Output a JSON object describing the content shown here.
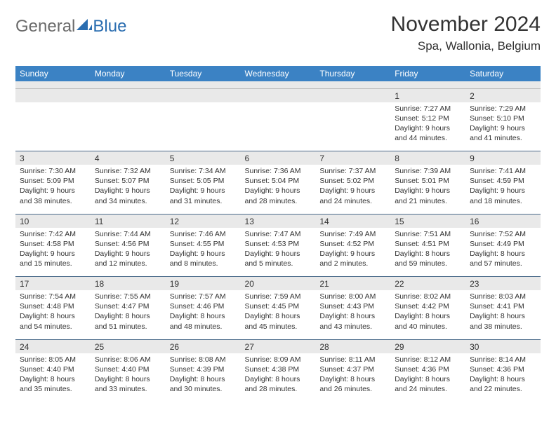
{
  "brand": {
    "part1": "General",
    "part2": "Blue"
  },
  "title": "November 2024",
  "location": "Spa, Wallonia, Belgium",
  "colors": {
    "header_bg": "#3b82c4",
    "header_text": "#ffffff",
    "daynum_bg": "#e9e9e9",
    "text": "#333333",
    "logo_gray": "#6b6b6b",
    "logo_blue": "#2a6db0",
    "row_border": "#4a6a8a"
  },
  "day_names": [
    "Sunday",
    "Monday",
    "Tuesday",
    "Wednesday",
    "Thursday",
    "Friday",
    "Saturday"
  ],
  "weeks": [
    [
      null,
      null,
      null,
      null,
      null,
      {
        "n": "1",
        "sunrise": "7:27 AM",
        "sunset": "5:12 PM",
        "daylight": "9 hours and 44 minutes."
      },
      {
        "n": "2",
        "sunrise": "7:29 AM",
        "sunset": "5:10 PM",
        "daylight": "9 hours and 41 minutes."
      }
    ],
    [
      {
        "n": "3",
        "sunrise": "7:30 AM",
        "sunset": "5:09 PM",
        "daylight": "9 hours and 38 minutes."
      },
      {
        "n": "4",
        "sunrise": "7:32 AM",
        "sunset": "5:07 PM",
        "daylight": "9 hours and 34 minutes."
      },
      {
        "n": "5",
        "sunrise": "7:34 AM",
        "sunset": "5:05 PM",
        "daylight": "9 hours and 31 minutes."
      },
      {
        "n": "6",
        "sunrise": "7:36 AM",
        "sunset": "5:04 PM",
        "daylight": "9 hours and 28 minutes."
      },
      {
        "n": "7",
        "sunrise": "7:37 AM",
        "sunset": "5:02 PM",
        "daylight": "9 hours and 24 minutes."
      },
      {
        "n": "8",
        "sunrise": "7:39 AM",
        "sunset": "5:01 PM",
        "daylight": "9 hours and 21 minutes."
      },
      {
        "n": "9",
        "sunrise": "7:41 AM",
        "sunset": "4:59 PM",
        "daylight": "9 hours and 18 minutes."
      }
    ],
    [
      {
        "n": "10",
        "sunrise": "7:42 AM",
        "sunset": "4:58 PM",
        "daylight": "9 hours and 15 minutes."
      },
      {
        "n": "11",
        "sunrise": "7:44 AM",
        "sunset": "4:56 PM",
        "daylight": "9 hours and 12 minutes."
      },
      {
        "n": "12",
        "sunrise": "7:46 AM",
        "sunset": "4:55 PM",
        "daylight": "9 hours and 8 minutes."
      },
      {
        "n": "13",
        "sunrise": "7:47 AM",
        "sunset": "4:53 PM",
        "daylight": "9 hours and 5 minutes."
      },
      {
        "n": "14",
        "sunrise": "7:49 AM",
        "sunset": "4:52 PM",
        "daylight": "9 hours and 2 minutes."
      },
      {
        "n": "15",
        "sunrise": "7:51 AM",
        "sunset": "4:51 PM",
        "daylight": "8 hours and 59 minutes."
      },
      {
        "n": "16",
        "sunrise": "7:52 AM",
        "sunset": "4:49 PM",
        "daylight": "8 hours and 57 minutes."
      }
    ],
    [
      {
        "n": "17",
        "sunrise": "7:54 AM",
        "sunset": "4:48 PM",
        "daylight": "8 hours and 54 minutes."
      },
      {
        "n": "18",
        "sunrise": "7:55 AM",
        "sunset": "4:47 PM",
        "daylight": "8 hours and 51 minutes."
      },
      {
        "n": "19",
        "sunrise": "7:57 AM",
        "sunset": "4:46 PM",
        "daylight": "8 hours and 48 minutes."
      },
      {
        "n": "20",
        "sunrise": "7:59 AM",
        "sunset": "4:45 PM",
        "daylight": "8 hours and 45 minutes."
      },
      {
        "n": "21",
        "sunrise": "8:00 AM",
        "sunset": "4:43 PM",
        "daylight": "8 hours and 43 minutes."
      },
      {
        "n": "22",
        "sunrise": "8:02 AM",
        "sunset": "4:42 PM",
        "daylight": "8 hours and 40 minutes."
      },
      {
        "n": "23",
        "sunrise": "8:03 AM",
        "sunset": "4:41 PM",
        "daylight": "8 hours and 38 minutes."
      }
    ],
    [
      {
        "n": "24",
        "sunrise": "8:05 AM",
        "sunset": "4:40 PM",
        "daylight": "8 hours and 35 minutes."
      },
      {
        "n": "25",
        "sunrise": "8:06 AM",
        "sunset": "4:40 PM",
        "daylight": "8 hours and 33 minutes."
      },
      {
        "n": "26",
        "sunrise": "8:08 AM",
        "sunset": "4:39 PM",
        "daylight": "8 hours and 30 minutes."
      },
      {
        "n": "27",
        "sunrise": "8:09 AM",
        "sunset": "4:38 PM",
        "daylight": "8 hours and 28 minutes."
      },
      {
        "n": "28",
        "sunrise": "8:11 AM",
        "sunset": "4:37 PM",
        "daylight": "8 hours and 26 minutes."
      },
      {
        "n": "29",
        "sunrise": "8:12 AM",
        "sunset": "4:36 PM",
        "daylight": "8 hours and 24 minutes."
      },
      {
        "n": "30",
        "sunrise": "8:14 AM",
        "sunset": "4:36 PM",
        "daylight": "8 hours and 22 minutes."
      }
    ]
  ],
  "labels": {
    "sunrise": "Sunrise:",
    "sunset": "Sunset:",
    "daylight": "Daylight:"
  }
}
